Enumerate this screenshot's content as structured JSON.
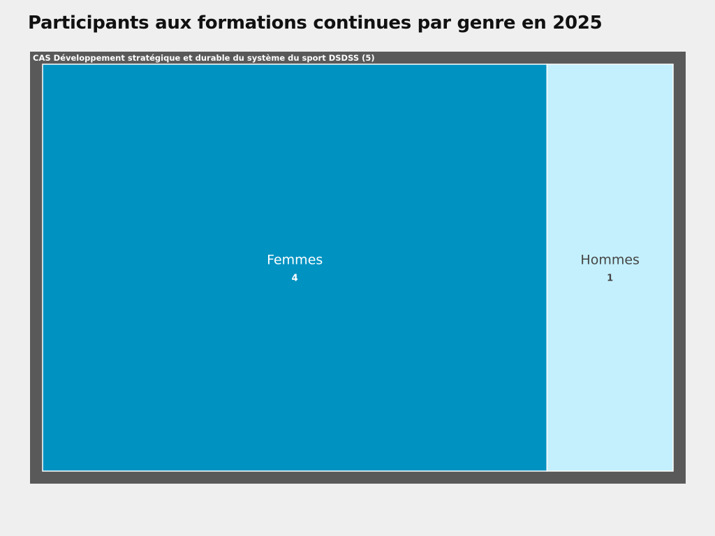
{
  "chart_data": {
    "type": "treemap",
    "title": "Participants aux formations continues par genre en 2025",
    "group": {
      "label": "CAS Développement stratégique et durable du système du sport DSDSS (5)",
      "total": 5
    },
    "categories": [
      "Femmes",
      "Hommes"
    ],
    "values": [
      4,
      1
    ],
    "colors": [
      "#0093c2",
      "#c4f0fd"
    ],
    "label_colors": [
      "#ffffff",
      "#444444"
    ],
    "group_color": "#595959"
  }
}
